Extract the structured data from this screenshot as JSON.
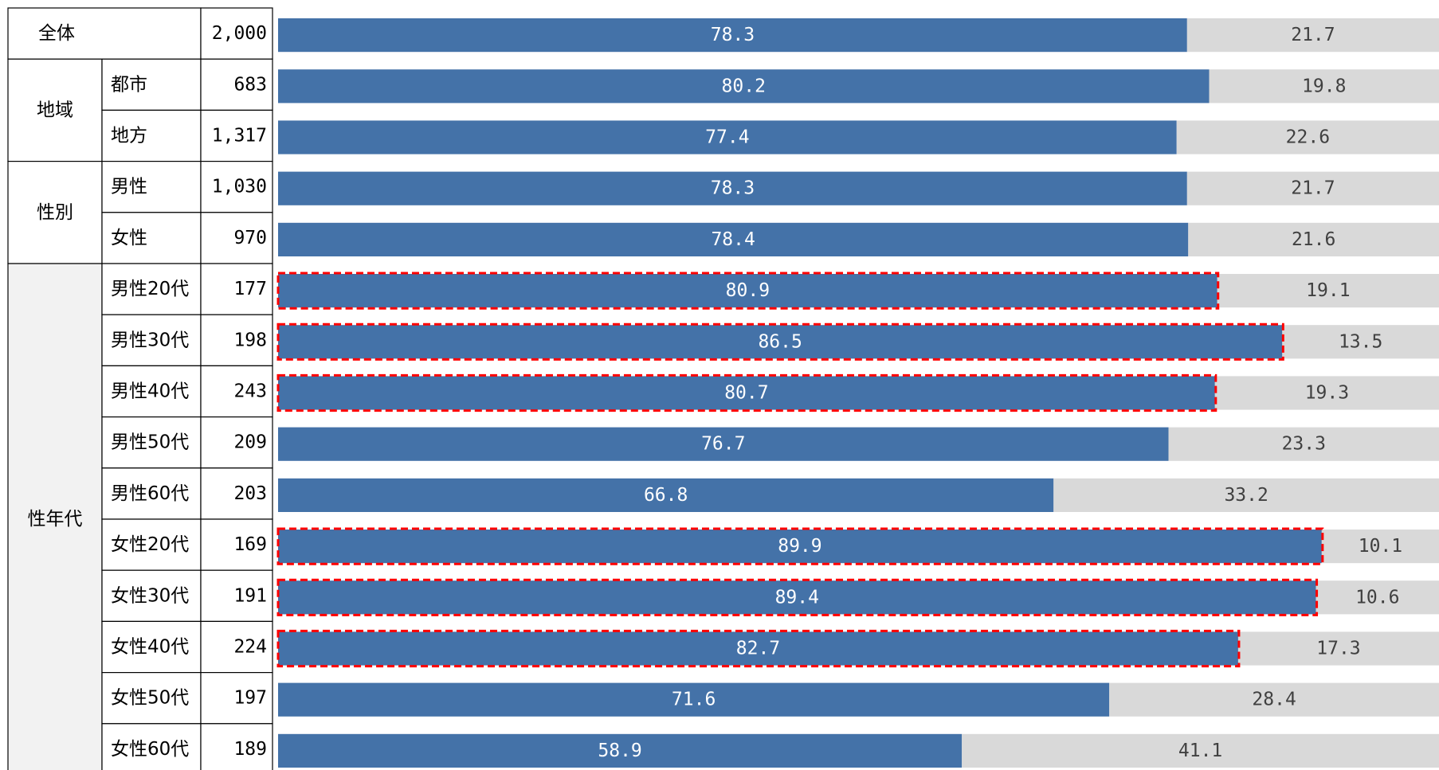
{
  "colors": {
    "primary_bar": "#4472a8",
    "secondary_bar": "#d9d9d9",
    "primary_label": "#ffffff",
    "secondary_label": "#404040",
    "highlight_outline": "#ff0000"
  },
  "table": {
    "groups": [
      {
        "label": "全体",
        "rows": [
          {
            "label": "",
            "n": "2,000"
          }
        ]
      },
      {
        "label": "地域",
        "rows": [
          {
            "label": "都市",
            "n": "683"
          },
          {
            "label": "地方",
            "n": "1,317"
          }
        ]
      },
      {
        "label": "性別",
        "rows": [
          {
            "label": "男性",
            "n": "1,030"
          },
          {
            "label": "女性",
            "n": "970"
          }
        ]
      },
      {
        "label": "性年代",
        "rows": [
          {
            "label": "男性20代",
            "n": "177"
          },
          {
            "label": "男性30代",
            "n": "198"
          },
          {
            "label": "男性40代",
            "n": "243"
          },
          {
            "label": "男性50代",
            "n": "209"
          },
          {
            "label": "男性60代",
            "n": "203"
          },
          {
            "label": "女性20代",
            "n": "169"
          },
          {
            "label": "女性30代",
            "n": "191"
          },
          {
            "label": "女性40代",
            "n": "224"
          },
          {
            "label": "女性50代",
            "n": "197"
          },
          {
            "label": "女性60代",
            "n": "189"
          }
        ]
      }
    ]
  },
  "chart_data": {
    "type": "bar",
    "orientation": "horizontal",
    "stacked": true,
    "xlim": [
      0,
      100
    ],
    "categories": [
      "全体",
      "都市",
      "地方",
      "男性",
      "女性",
      "男性20代",
      "男性30代",
      "男性40代",
      "男性50代",
      "男性60代",
      "女性20代",
      "女性30代",
      "女性40代",
      "女性50代",
      "女性60代"
    ],
    "series": [
      {
        "values": [
          78.3,
          80.2,
          77.4,
          78.3,
          78.4,
          80.9,
          86.5,
          80.7,
          76.7,
          66.8,
          89.9,
          89.4,
          82.7,
          71.6,
          58.9
        ],
        "labels": [
          "78.3",
          "80.2",
          "77.4",
          "78.3",
          "78.4",
          "80.9",
          "86.5",
          "80.7",
          "76.7",
          "66.8",
          "89.9",
          "89.4",
          "82.7",
          "71.6",
          "58.9"
        ]
      },
      {
        "values": [
          21.7,
          19.8,
          22.6,
          21.7,
          21.6,
          19.1,
          13.5,
          19.3,
          23.3,
          33.2,
          10.1,
          10.6,
          17.3,
          28.4,
          41.1
        ],
        "labels": [
          "21.7",
          "19.8",
          "22.6",
          "21.7",
          "21.6",
          "19.1",
          "13.5",
          "19.3",
          "23.3",
          "33.2",
          "10.1",
          "10.6",
          "17.3",
          "28.4",
          "41.1"
        ]
      }
    ],
    "highlighted": [
      false,
      false,
      false,
      false,
      false,
      true,
      true,
      true,
      false,
      false,
      true,
      true,
      true,
      false,
      false
    ],
    "grid": false,
    "legend": "none"
  }
}
